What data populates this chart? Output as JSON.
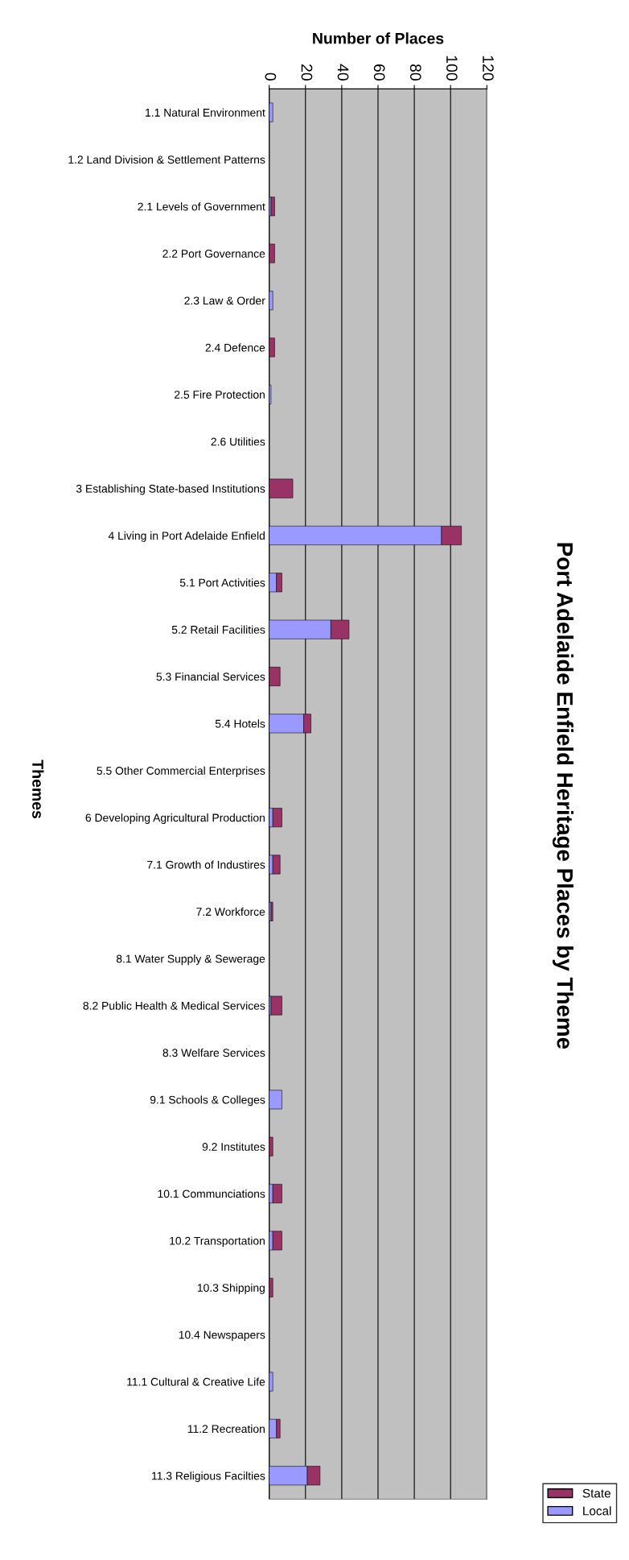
{
  "chart_data": {
    "type": "bar",
    "orientation": "horizontal",
    "stacked": true,
    "title": "Port Adelaide Enfield Heritage Places by Theme",
    "xlabel": "Number of Places",
    "ylabel": "Themes",
    "categories": [
      "1.1 Natural Environment",
      "1.2 Land Division & Settlement Patterns",
      "2.1 Levels of Government",
      "2.2 Port Governance",
      "2.3 Law & Order",
      "2.4 Defence",
      "2.5 Fire Protection",
      "2.6 Utilities",
      "3 Establishing State-based Institutions",
      "4 Living in Port Adelaide Enfield",
      "5.1 Port Activities",
      "5.2 Retail Facilities",
      "5.3 Financial Services",
      "5.4 Hotels",
      "5.5 Other Commercial Enterprises",
      "6 Developing Agricultural Production",
      "7.1 Growth of Industires",
      "7.2 Workforce",
      "8.1 Water Supply & Sewerage",
      "8.2 Public Health & Medical Services",
      "8.3 Welfare Services",
      "9.1 Schools & Colleges",
      "9.2 Institutes",
      "10.1 Communciations",
      "10.2 Transportation",
      "10.3 Shipping",
      "10.4 Newspapers",
      "11.1 Cultural & Creative Life",
      "11.2 Recreation",
      "11.3 Religious Facilties"
    ],
    "series": [
      {
        "name": "Local",
        "color": "#9999ff",
        "values": [
          2,
          0,
          1,
          0,
          2,
          0,
          1,
          0,
          0,
          95,
          4,
          34,
          0,
          19,
          0,
          2,
          2,
          1,
          0,
          1,
          0,
          7,
          0,
          2,
          2,
          0,
          0,
          2,
          4,
          21
        ]
      },
      {
        "name": "State",
        "color": "#993366",
        "values": [
          0,
          0,
          2,
          3,
          0,
          3,
          0,
          0,
          13,
          11,
          3,
          10,
          6,
          4,
          0,
          5,
          4,
          1,
          0,
          6,
          0,
          0,
          2,
          5,
          5,
          2,
          0,
          0,
          2,
          7
        ]
      }
    ],
    "xlim": [
      0,
      120
    ],
    "xticks": [
      0,
      20,
      40,
      60,
      80,
      100,
      120
    ],
    "grid": "x",
    "legend": "bottom right"
  }
}
